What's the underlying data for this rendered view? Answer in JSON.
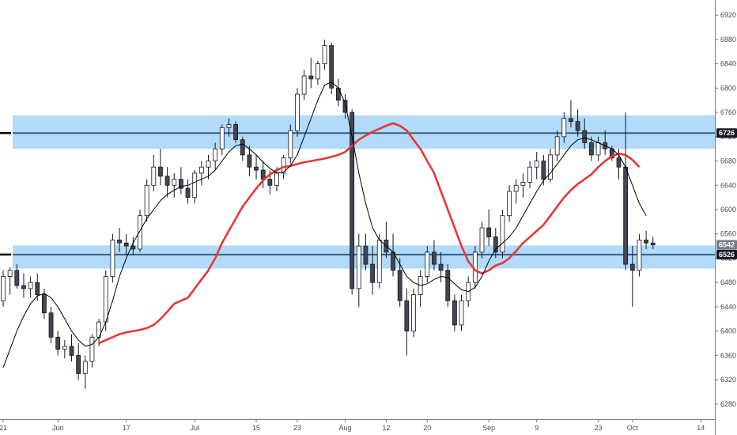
{
  "chart_data": {
    "type": "candlestick",
    "y_ticks": [
      6280,
      6320,
      6360,
      6400,
      6440,
      6480,
      6520,
      6560,
      6600,
      6640,
      6680,
      6720,
      6760,
      6800,
      6840,
      6880,
      6920
    ],
    "x_ticks": [
      {
        "label": "21",
        "bar": 0
      },
      {
        "label": "Jun",
        "bar": 8
      },
      {
        "label": "17",
        "bar": 18
      },
      {
        "label": "Jul",
        "bar": 28
      },
      {
        "label": "15",
        "bar": 37
      },
      {
        "label": "23",
        "bar": 43
      },
      {
        "label": "Aug",
        "bar": 50
      },
      {
        "label": "12",
        "bar": 56
      },
      {
        "label": "20",
        "bar": 62
      },
      {
        "label": "Sep",
        "bar": 71
      },
      {
        "label": "9",
        "bar": 78
      },
      {
        "label": "23",
        "bar": 87
      },
      {
        "label": "Oct",
        "bar": 92
      },
      {
        "label": "14",
        "bar": 102
      }
    ],
    "ylim": [
      6255,
      6945
    ],
    "candles": [
      [
        6450,
        6500,
        6440,
        6490
      ],
      [
        6490,
        6505,
        6460,
        6500
      ],
      [
        6500,
        6510,
        6470,
        6475
      ],
      [
        6475,
        6495,
        6455,
        6470
      ],
      [
        6470,
        6490,
        6455,
        6480
      ],
      [
        6480,
        6495,
        6450,
        6460
      ],
      [
        6460,
        6470,
        6420,
        6430
      ],
      [
        6430,
        6440,
        6380,
        6390
      ],
      [
        6390,
        6400,
        6360,
        6370
      ],
      [
        6370,
        6385,
        6355,
        6375
      ],
      [
        6375,
        6395,
        6350,
        6360
      ],
      [
        6360,
        6380,
        6320,
        6330
      ],
      [
        6330,
        6360,
        6305,
        6350
      ],
      [
        6350,
        6395,
        6340,
        6390
      ],
      [
        6390,
        6420,
        6375,
        6415
      ],
      [
        6415,
        6500,
        6400,
        6490
      ],
      [
        6490,
        6560,
        6480,
        6550
      ],
      [
        6550,
        6570,
        6530,
        6545
      ],
      [
        6545,
        6560,
        6525,
        6540
      ],
      [
        6540,
        6555,
        6525,
        6535
      ],
      [
        6535,
        6600,
        6530,
        6590
      ],
      [
        6590,
        6650,
        6580,
        6640
      ],
      [
        6640,
        6690,
        6630,
        6670
      ],
      [
        6670,
        6700,
        6640,
        6655
      ],
      [
        6655,
        6670,
        6620,
        6640
      ],
      [
        6640,
        6660,
        6620,
        6650
      ],
      [
        6650,
        6670,
        6625,
        6635
      ],
      [
        6635,
        6650,
        6610,
        6620
      ],
      [
        6620,
        6665,
        6610,
        6660
      ],
      [
        6660,
        6680,
        6640,
        6670
      ],
      [
        6670,
        6690,
        6650,
        6680
      ],
      [
        6680,
        6710,
        6665,
        6700
      ],
      [
        6700,
        6740,
        6690,
        6735
      ],
      [
        6735,
        6750,
        6720,
        6740
      ],
      [
        6740,
        6745,
        6710,
        6715
      ],
      [
        6715,
        6720,
        6680,
        6690
      ],
      [
        6690,
        6705,
        6655,
        6670
      ],
      [
        6670,
        6690,
        6650,
        6665
      ],
      [
        6665,
        6680,
        6635,
        6650
      ],
      [
        6650,
        6665,
        6625,
        6640
      ],
      [
        6640,
        6670,
        6630,
        6660
      ],
      [
        6660,
        6690,
        6650,
        6685
      ],
      [
        6685,
        6740,
        6675,
        6730
      ],
      [
        6730,
        6800,
        6720,
        6790
      ],
      [
        6790,
        6830,
        6780,
        6820
      ],
      [
        6820,
        6850,
        6800,
        6815
      ],
      [
        6815,
        6845,
        6805,
        6840
      ],
      [
        6840,
        6880,
        6830,
        6870
      ],
      [
        6870,
        6875,
        6790,
        6800
      ],
      [
        6800,
        6815,
        6770,
        6780
      ],
      [
        6780,
        6790,
        6750,
        6760
      ],
      [
        6760,
        6765,
        6460,
        6470
      ],
      [
        6470,
        6560,
        6440,
        6540
      ],
      [
        6540,
        6560,
        6500,
        6510
      ],
      [
        6510,
        6540,
        6460,
        6480
      ],
      [
        6480,
        6560,
        6470,
        6550
      ],
      [
        6550,
        6580,
        6520,
        6530
      ],
      [
        6530,
        6560,
        6490,
        6500
      ],
      [
        6500,
        6520,
        6440,
        6450
      ],
      [
        6450,
        6470,
        6360,
        6400
      ],
      [
        6400,
        6470,
        6390,
        6460
      ],
      [
        6460,
        6500,
        6440,
        6490
      ],
      [
        6490,
        6540,
        6480,
        6530
      ],
      [
        6530,
        6550,
        6500,
        6510
      ],
      [
        6510,
        6530,
        6480,
        6500
      ],
      [
        6500,
        6510,
        6440,
        6450
      ],
      [
        6450,
        6460,
        6400,
        6410
      ],
      [
        6410,
        6460,
        6400,
        6450
      ],
      [
        6450,
        6490,
        6440,
        6480
      ],
      [
        6480,
        6540,
        6470,
        6530
      ],
      [
        6530,
        6580,
        6520,
        6570
      ],
      [
        6570,
        6600,
        6540,
        6555
      ],
      [
        6555,
        6570,
        6520,
        6530
      ],
      [
        6530,
        6600,
        6520,
        6590
      ],
      [
        6590,
        6640,
        6580,
        6630
      ],
      [
        6630,
        6650,
        6610,
        6640
      ],
      [
        6640,
        6660,
        6620,
        6645
      ],
      [
        6645,
        6680,
        6635,
        6670
      ],
      [
        6670,
        6695,
        6650,
        6680
      ],
      [
        6680,
        6690,
        6640,
        6650
      ],
      [
        6650,
        6700,
        6645,
        6690
      ],
      [
        6690,
        6730,
        6680,
        6720
      ],
      [
        6720,
        6760,
        6710,
        6750
      ],
      [
        6750,
        6780,
        6735,
        6745
      ],
      [
        6745,
        6765,
        6720,
        6730
      ],
      [
        6730,
        6750,
        6700,
        6710
      ],
      [
        6710,
        6720,
        6680,
        6690
      ],
      [
        6690,
        6720,
        6680,
        6710
      ],
      [
        6710,
        6730,
        6690,
        6700
      ],
      [
        6700,
        6705,
        6680,
        6685
      ],
      [
        6685,
        6700,
        6650,
        6670
      ],
      [
        6670,
        6760,
        6500,
        6510
      ],
      [
        6510,
        6540,
        6440,
        6500
      ],
      [
        6500,
        6560,
        6490,
        6550
      ],
      [
        6550,
        6565,
        6535,
        6545
      ],
      [
        6545,
        6555,
        6535,
        6542
      ]
    ],
    "ma_fast": [
      6340,
      6370,
      6400,
      6425,
      6445,
      6458,
      6462,
      6455,
      6440,
      6420,
      6400,
      6385,
      6375,
      6378,
      6390,
      6415,
      6450,
      6490,
      6520,
      6545,
      6565,
      6585,
      6600,
      6615,
      6625,
      6632,
      6638,
      6640,
      6645,
      6650,
      6655,
      6665,
      6680,
      6695,
      6705,
      6708,
      6700,
      6690,
      6678,
      6668,
      6660,
      6662,
      6672,
      6690,
      6720,
      6750,
      6780,
      6805,
      6810,
      6800,
      6775,
      6720,
      6660,
      6610,
      6570,
      6550,
      6540,
      6530,
      6510,
      6490,
      6480,
      6475,
      6478,
      6485,
      6490,
      6488,
      6478,
      6468,
      6465,
      6472,
      6490,
      6515,
      6535,
      6545,
      6555,
      6570,
      6590,
      6610,
      6630,
      6648,
      6660,
      6675,
      6690,
      6705,
      6715,
      6718,
      6715,
      6710,
      6705,
      6700,
      6690,
      6670,
      6640,
      6610,
      6590
    ],
    "ma_slow": [
      6380,
      6385,
      6390,
      6395,
      6398,
      6400,
      6402,
      6405,
      6410,
      6420,
      6432,
      6445,
      6450,
      6455,
      6470,
      6485,
      6500,
      6520,
      6545,
      6565,
      6585,
      6605,
      6620,
      6635,
      6648,
      6658,
      6665,
      6670,
      6672,
      6675,
      6678,
      6680,
      6682,
      6684,
      6687,
      6690,
      6695,
      6705,
      6715,
      6722,
      6728,
      6733,
      6738,
      6742,
      6738,
      6730,
      6715,
      6700,
      6680,
      6660,
      6630,
      6600,
      6570,
      6540,
      6515,
      6500,
      6495,
      6500,
      6508,
      6512,
      6520,
      6532,
      6545,
      6555,
      6565,
      6575,
      6590,
      6605,
      6620,
      6632,
      6642,
      6650,
      6658,
      6670,
      6680,
      6688,
      6692,
      6690,
      6682,
      6670
    ],
    "ma_slow_start": 14,
    "zones": [
      {
        "low": 6700,
        "high": 6755,
        "line": 6726
      },
      {
        "low": 6503,
        "high": 6541,
        "line": 6526
      }
    ],
    "price_tags": [
      {
        "label": "6726",
        "value": 6726,
        "color": "#131722"
      },
      {
        "label": "6542",
        "value": 6542,
        "color": "#787b86"
      },
      {
        "label": "6526",
        "value": 6526,
        "color": "#131722"
      }
    ]
  },
  "colors": {
    "zone_fill": "#90caf9",
    "zone_line": "#355f7d",
    "candle_up": "#ffffff",
    "candle_down": "#434651",
    "candle_border": "#131722",
    "ma_slow": "#e53935",
    "ma_fast": "#000000",
    "axis": "#787b86"
  }
}
